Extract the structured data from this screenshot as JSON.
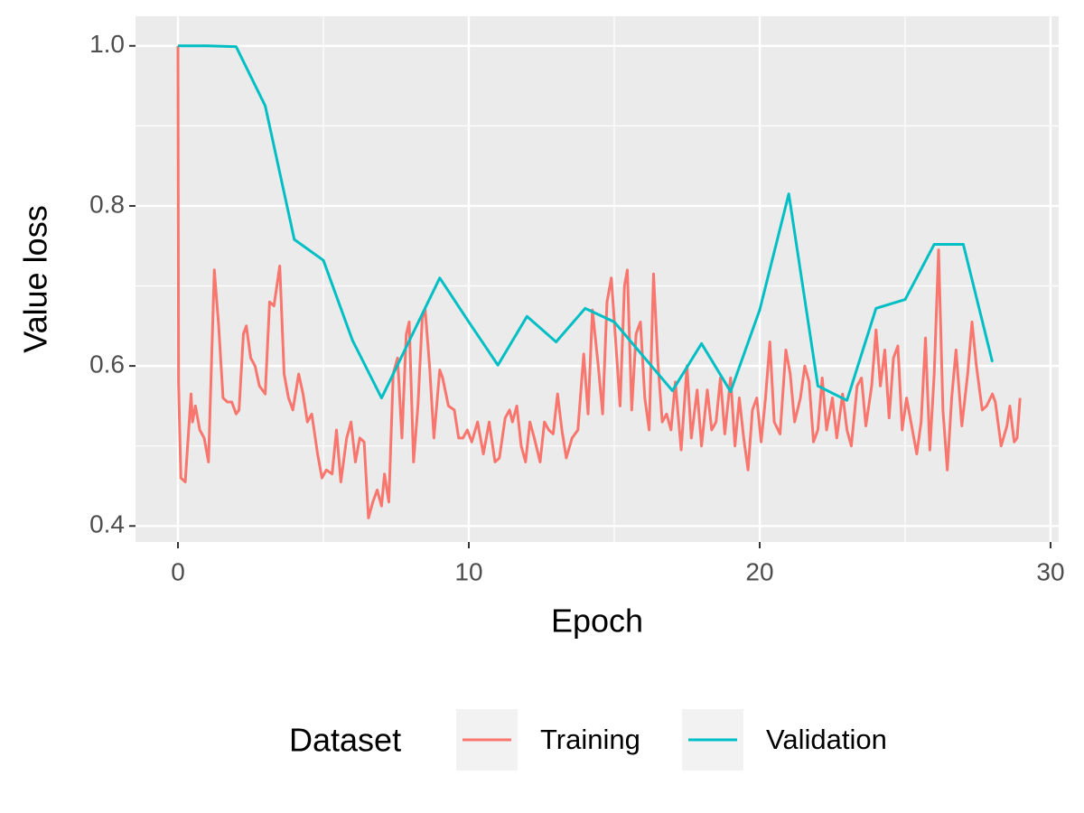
{
  "chart_data": {
    "type": "line",
    "xlabel": "Epoch",
    "ylabel": "Value loss",
    "xlim": [
      -1.46,
      30.28
    ],
    "ylim": [
      0.38,
      1.037
    ],
    "xticks": [
      0,
      10,
      20,
      30
    ],
    "yticks": [
      0.4,
      0.6,
      0.8,
      {
        "value": 1,
        "label": "1.0"
      }
    ],
    "x_minor_grid": [
      5,
      15,
      25
    ],
    "y_minor_grid": [
      0.5,
      0.7,
      0.9
    ],
    "grid": true,
    "legend_title": "Dataset",
    "legend_position": "bottom",
    "series": [
      {
        "name": "Training",
        "color": "#f8766d",
        "x": [
          0,
          0.02,
          0.1,
          0.25,
          0.45,
          0.5,
          0.6,
          0.75,
          0.9,
          1.05,
          1.25,
          1.4,
          1.55,
          1.7,
          1.85,
          2.0,
          2.1,
          2.25,
          2.35,
          2.5,
          2.65,
          2.8,
          3.0,
          3.15,
          3.3,
          3.5,
          3.65,
          3.8,
          3.95,
          4.15,
          4.3,
          4.45,
          4.6,
          4.8,
          4.95,
          5.1,
          5.3,
          5.45,
          5.6,
          5.8,
          5.95,
          6.1,
          6.25,
          6.4,
          6.55,
          6.7,
          6.85,
          7.0,
          7.1,
          7.25,
          7.4,
          7.55,
          7.7,
          7.85,
          7.95,
          8.1,
          8.25,
          8.4,
          8.5,
          8.65,
          8.8,
          9.0,
          9.1,
          9.3,
          9.5,
          9.65,
          9.8,
          9.95,
          10.1,
          10.3,
          10.5,
          10.7,
          10.9,
          11.05,
          11.25,
          11.4,
          11.5,
          11.65,
          11.8,
          11.95,
          12.1,
          12.25,
          12.45,
          12.6,
          12.75,
          12.9,
          13.05,
          13.2,
          13.35,
          13.55,
          13.75,
          13.95,
          14.1,
          14.25,
          14.45,
          14.6,
          14.75,
          14.9,
          15.05,
          15.2,
          15.35,
          15.45,
          15.6,
          15.75,
          15.9,
          16.05,
          16.2,
          16.35,
          16.5,
          16.65,
          16.8,
          16.95,
          17.1,
          17.3,
          17.5,
          17.65,
          17.85,
          18.0,
          18.2,
          18.35,
          18.5,
          18.65,
          18.8,
          19.0,
          19.15,
          19.3,
          19.45,
          19.6,
          19.75,
          19.9,
          20.05,
          20.2,
          20.35,
          20.5,
          20.7,
          20.9,
          21.05,
          21.2,
          21.4,
          21.55,
          21.7,
          21.85,
          22.0,
          22.15,
          22.3,
          22.5,
          22.65,
          22.85,
          23.0,
          23.15,
          23.35,
          23.5,
          23.65,
          23.85,
          24.0,
          24.15,
          24.3,
          24.45,
          24.6,
          24.75,
          24.9,
          25.05,
          25.2,
          25.4,
          25.55,
          25.7,
          25.85,
          26.0,
          26.15,
          26.3,
          26.45,
          26.6,
          26.75,
          26.95,
          27.15,
          27.3,
          27.45,
          27.65,
          27.8,
          28.0,
          28.1,
          28.3,
          28.5,
          28.6,
          28.75,
          28.85,
          28.95
        ],
        "values": [
          1.0,
          0.58,
          0.46,
          0.455,
          0.565,
          0.53,
          0.55,
          0.52,
          0.51,
          0.48,
          0.72,
          0.65,
          0.56,
          0.555,
          0.555,
          0.54,
          0.545,
          0.64,
          0.65,
          0.61,
          0.6,
          0.575,
          0.565,
          0.68,
          0.675,
          0.725,
          0.59,
          0.56,
          0.545,
          0.59,
          0.565,
          0.53,
          0.54,
          0.49,
          0.46,
          0.47,
          0.465,
          0.52,
          0.455,
          0.51,
          0.53,
          0.48,
          0.51,
          0.505,
          0.41,
          0.43,
          0.445,
          0.425,
          0.465,
          0.43,
          0.59,
          0.61,
          0.51,
          0.64,
          0.655,
          0.48,
          0.55,
          0.66,
          0.67,
          0.6,
          0.51,
          0.595,
          0.585,
          0.55,
          0.545,
          0.51,
          0.51,
          0.52,
          0.505,
          0.53,
          0.49,
          0.53,
          0.48,
          0.485,
          0.535,
          0.545,
          0.53,
          0.55,
          0.5,
          0.48,
          0.53,
          0.51,
          0.48,
          0.53,
          0.52,
          0.515,
          0.565,
          0.52,
          0.485,
          0.51,
          0.52,
          0.615,
          0.54,
          0.67,
          0.6,
          0.54,
          0.68,
          0.71,
          0.63,
          0.55,
          0.7,
          0.72,
          0.545,
          0.64,
          0.655,
          0.56,
          0.52,
          0.715,
          0.605,
          0.53,
          0.54,
          0.52,
          0.58,
          0.495,
          0.6,
          0.51,
          0.57,
          0.5,
          0.57,
          0.52,
          0.53,
          0.585,
          0.515,
          0.585,
          0.5,
          0.56,
          0.51,
          0.47,
          0.545,
          0.56,
          0.505,
          0.56,
          0.63,
          0.53,
          0.515,
          0.62,
          0.59,
          0.53,
          0.56,
          0.6,
          0.58,
          0.505,
          0.52,
          0.585,
          0.52,
          0.56,
          0.51,
          0.565,
          0.52,
          0.5,
          0.575,
          0.585,
          0.525,
          0.575,
          0.645,
          0.575,
          0.62,
          0.535,
          0.61,
          0.625,
          0.52,
          0.56,
          0.53,
          0.49,
          0.53,
          0.635,
          0.495,
          0.59,
          0.745,
          0.545,
          0.47,
          0.56,
          0.62,
          0.525,
          0.59,
          0.655,
          0.6,
          0.545,
          0.55,
          0.565,
          0.555,
          0.5,
          0.525,
          0.55,
          0.505,
          0.51,
          0.56
        ]
      },
      {
        "name": "Validation",
        "color": "#00bfc4",
        "x": [
          0,
          1,
          2,
          3,
          4,
          5,
          6,
          7,
          8,
          9,
          10,
          11,
          12,
          13,
          14,
          15,
          16,
          17,
          18,
          19,
          20,
          21,
          22,
          23,
          24,
          25,
          26,
          27,
          28
        ],
        "values": [
          1.0,
          1.0,
          0.999,
          0.925,
          0.758,
          0.732,
          0.632,
          0.56,
          0.635,
          0.71,
          0.655,
          0.601,
          0.662,
          0.63,
          0.672,
          0.655,
          0.612,
          0.569,
          0.628,
          0.568,
          0.67,
          0.815,
          0.575,
          0.557,
          0.672,
          0.683,
          0.752,
          0.752,
          0.605
        ]
      }
    ]
  }
}
